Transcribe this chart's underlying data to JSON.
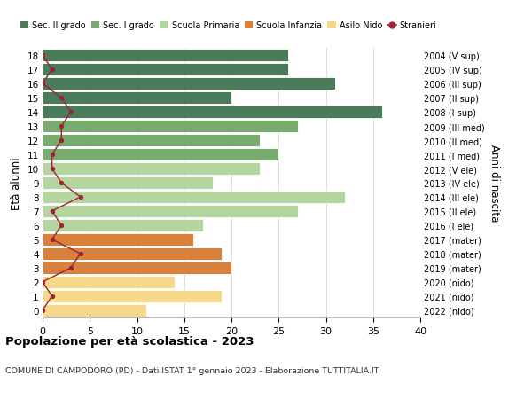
{
  "ages": [
    18,
    17,
    16,
    15,
    14,
    13,
    12,
    11,
    10,
    9,
    8,
    7,
    6,
    5,
    4,
    3,
    2,
    1,
    0
  ],
  "right_labels": [
    "2004 (V sup)",
    "2005 (IV sup)",
    "2006 (III sup)",
    "2007 (II sup)",
    "2008 (I sup)",
    "2009 (III med)",
    "2010 (II med)",
    "2011 (I med)",
    "2012 (V ele)",
    "2013 (IV ele)",
    "2014 (III ele)",
    "2015 (II ele)",
    "2016 (I ele)",
    "2017 (mater)",
    "2018 (mater)",
    "2019 (mater)",
    "2020 (nido)",
    "2021 (nido)",
    "2022 (nido)"
  ],
  "bar_values": [
    26,
    26,
    31,
    20,
    36,
    27,
    23,
    25,
    23,
    18,
    32,
    27,
    17,
    16,
    19,
    20,
    14,
    19,
    11
  ],
  "bar_colors": [
    "#4a7c59",
    "#4a7c59",
    "#4a7c59",
    "#4a7c59",
    "#4a7c59",
    "#7aab6e",
    "#7aab6e",
    "#7aab6e",
    "#b5d5a0",
    "#b5d5a0",
    "#b5d5a0",
    "#b5d5a0",
    "#b5d5a0",
    "#d9813a",
    "#d9813a",
    "#d9813a",
    "#f5d88a",
    "#f5d88a",
    "#f5d88a"
  ],
  "stranieri_values": [
    0,
    1,
    0,
    2,
    3,
    2,
    2,
    1,
    1,
    2,
    4,
    1,
    2,
    1,
    4,
    3,
    0,
    1,
    0
  ],
  "legend_labels": [
    "Sec. II grado",
    "Sec. I grado",
    "Scuola Primaria",
    "Scuola Infanzia",
    "Asilo Nido",
    "Stranieri"
  ],
  "legend_colors": [
    "#4a7c59",
    "#7aab6e",
    "#b5d5a0",
    "#d9813a",
    "#f5d88a",
    "#9b2335"
  ],
  "ylabel_left": "Età alunni",
  "ylabel_right": "Anni di nascita",
  "title": "Popolazione per età scolastica - 2023",
  "subtitle": "COMUNE DI CAMPODORO (PD) - Dati ISTAT 1° gennaio 2023 - Elaborazione TUTTITALIA.IT",
  "xlim": [
    0,
    40
  ],
  "xticks": [
    0,
    5,
    10,
    15,
    20,
    25,
    30,
    35,
    40
  ],
  "background_color": "#ffffff",
  "grid_color": "#dddddd",
  "stranieri_color": "#9b2335",
  "bar_edge_color": "#ffffff"
}
